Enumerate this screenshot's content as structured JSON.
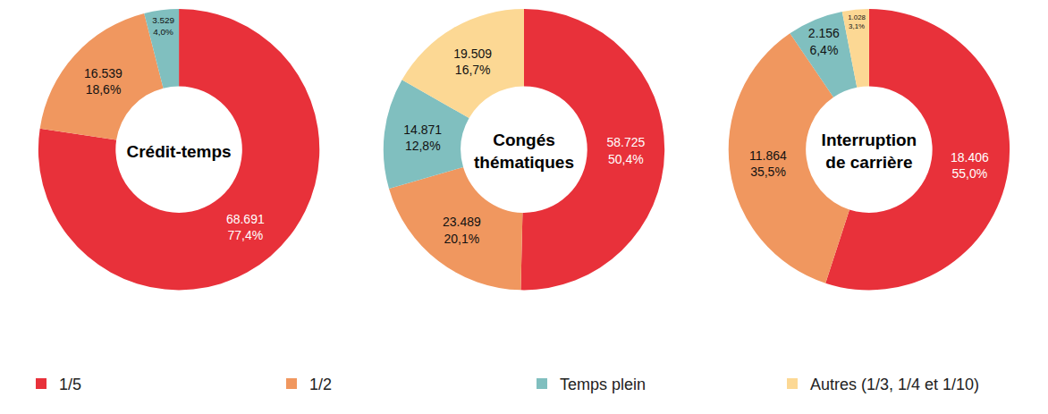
{
  "chart_data": [
    {
      "type": "pie",
      "title": "Crédit-temps",
      "legend": "bottom",
      "data_labels": true,
      "categories": [
        "1/5",
        "1/2",
        "Temps plein"
      ],
      "values": [
        68691,
        16539,
        3529
      ],
      "value_labels": [
        "68.691\n77,4%",
        "16.539\n18,6%",
        "3.529\n4,0%"
      ],
      "colors": [
        "#e8313a",
        "#f0975f",
        "#80bfbf"
      ]
    },
    {
      "type": "pie",
      "title": "Congés\nthématiques",
      "legend": "bottom",
      "data_labels": true,
      "categories": [
        "1/5",
        "1/2",
        "Temps plein",
        "Autres (1/3, 1/4 et 1/10)"
      ],
      "values": [
        58725,
        23489,
        14871,
        19509
      ],
      "value_labels": [
        "58.725\n50,4%",
        "23.489\n20,1%",
        "14.871\n12,8%",
        "19.509\n16,7%"
      ],
      "colors": [
        "#e8313a",
        "#f0975f",
        "#80bfbf",
        "#fcd894"
      ]
    },
    {
      "type": "pie",
      "title": "Interruption\nde carrière",
      "legend": "bottom",
      "data_labels": true,
      "categories": [
        "1/5",
        "1/2",
        "Temps plein",
        "Autres (1/3, 1/4 et 1/10)"
      ],
      "values": [
        18406,
        11864,
        2156,
        1028
      ],
      "value_labels": [
        "18.406\n55,0%",
        "11.864\n35,5%",
        "2.156\n6,4%",
        "1.028\n3,1%"
      ],
      "colors": [
        "#e8313a",
        "#f0975f",
        "#80bfbf",
        "#fcd894"
      ]
    }
  ]
}
